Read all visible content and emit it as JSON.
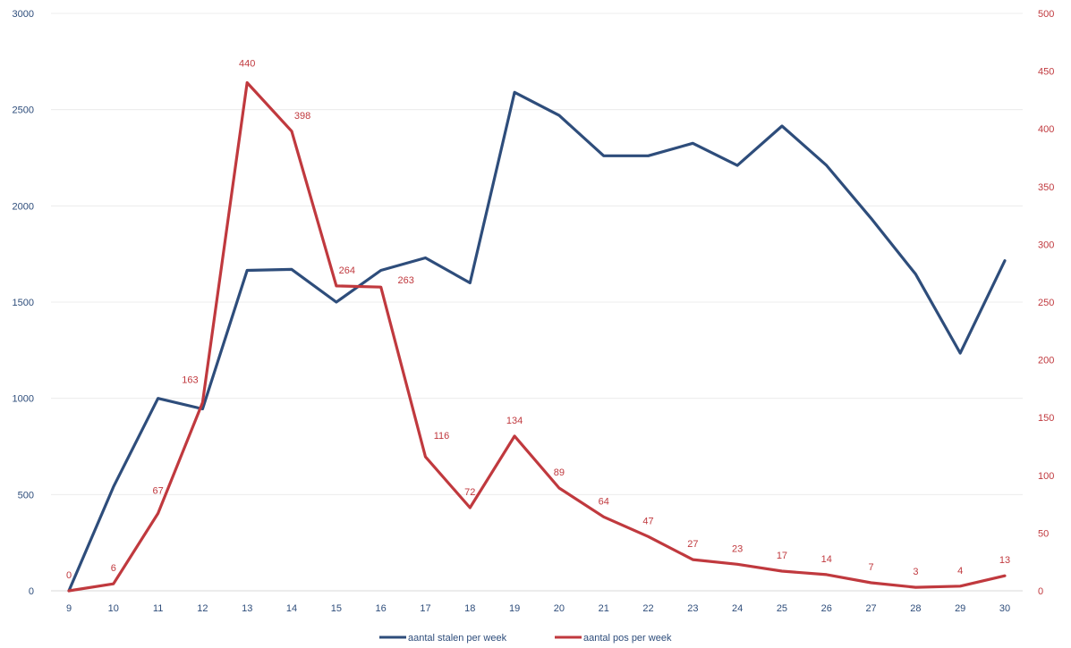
{
  "chart_data": {
    "type": "line",
    "title": "",
    "x": [
      9,
      10,
      11,
      12,
      13,
      14,
      15,
      16,
      17,
      18,
      19,
      20,
      21,
      22,
      23,
      24,
      25,
      26,
      27,
      28,
      29,
      30
    ],
    "y_left_lim": [
      0,
      3000
    ],
    "y_left_ticks": [
      0,
      500,
      1000,
      1500,
      2000,
      2500,
      3000
    ],
    "y_right_lim": [
      0,
      500
    ],
    "y_right_ticks": [
      0,
      50,
      100,
      150,
      200,
      250,
      300,
      350,
      400,
      450,
      500
    ],
    "grid": true,
    "legend_position": "bottom",
    "series": [
      {
        "name": "aantal stalen per week",
        "axis": "left",
        "color": "#2e4d7b",
        "values": [
          0,
          540,
          1000,
          945,
          1665,
          1670,
          1500,
          1665,
          1730,
          1600,
          2590,
          2470,
          2260,
          2260,
          2325,
          2210,
          2415,
          2210,
          1935,
          1645,
          1235,
          1715
        ]
      },
      {
        "name": "aantal pos per week",
        "axis": "right",
        "color": "#c0393e",
        "values": [
          0,
          6,
          67,
          163,
          440,
          398,
          264,
          263,
          116,
          72,
          134,
          89,
          64,
          47,
          27,
          23,
          17,
          14,
          7,
          3,
          4,
          13
        ],
        "data_labels": [
          "0",
          "6",
          "67",
          "163",
          "440",
          "398",
          "264",
          "263",
          "116",
          "72",
          "134",
          "89",
          "64",
          "47",
          "27",
          "23",
          "17",
          "14",
          "7",
          "3",
          "4",
          "13"
        ]
      }
    ]
  }
}
